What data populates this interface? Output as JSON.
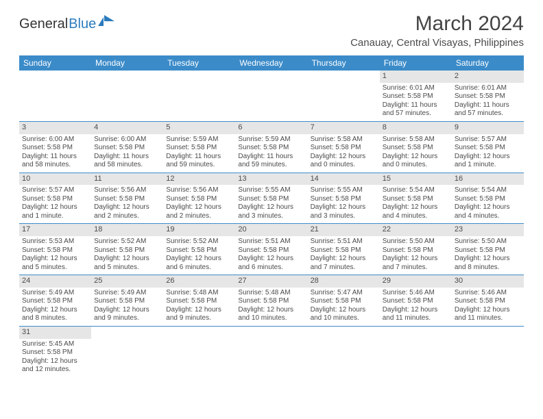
{
  "brand": {
    "main": "General",
    "accent": "Blue"
  },
  "title": "March 2024",
  "location": "Canauay, Central Visayas, Philippines",
  "colors": {
    "header_bg": "#3b8bc9",
    "header_text": "#ffffff",
    "date_bg": "#e6e6e6",
    "text": "#4a4a4a",
    "row_border": "#3b8bc9",
    "accent": "#2b7bbd"
  },
  "day_names": [
    "Sunday",
    "Monday",
    "Tuesday",
    "Wednesday",
    "Thursday",
    "Friday",
    "Saturday"
  ],
  "weeks": [
    [
      null,
      null,
      null,
      null,
      null,
      {
        "d": "1",
        "sr": "Sunrise: 6:01 AM",
        "ss": "Sunset: 5:58 PM",
        "dl1": "Daylight: 11 hours",
        "dl2": "and 57 minutes."
      },
      {
        "d": "2",
        "sr": "Sunrise: 6:01 AM",
        "ss": "Sunset: 5:58 PM",
        "dl1": "Daylight: 11 hours",
        "dl2": "and 57 minutes."
      }
    ],
    [
      {
        "d": "3",
        "sr": "Sunrise: 6:00 AM",
        "ss": "Sunset: 5:58 PM",
        "dl1": "Daylight: 11 hours",
        "dl2": "and 58 minutes."
      },
      {
        "d": "4",
        "sr": "Sunrise: 6:00 AM",
        "ss": "Sunset: 5:58 PM",
        "dl1": "Daylight: 11 hours",
        "dl2": "and 58 minutes."
      },
      {
        "d": "5",
        "sr": "Sunrise: 5:59 AM",
        "ss": "Sunset: 5:58 PM",
        "dl1": "Daylight: 11 hours",
        "dl2": "and 59 minutes."
      },
      {
        "d": "6",
        "sr": "Sunrise: 5:59 AM",
        "ss": "Sunset: 5:58 PM",
        "dl1": "Daylight: 11 hours",
        "dl2": "and 59 minutes."
      },
      {
        "d": "7",
        "sr": "Sunrise: 5:58 AM",
        "ss": "Sunset: 5:58 PM",
        "dl1": "Daylight: 12 hours",
        "dl2": "and 0 minutes."
      },
      {
        "d": "8",
        "sr": "Sunrise: 5:58 AM",
        "ss": "Sunset: 5:58 PM",
        "dl1": "Daylight: 12 hours",
        "dl2": "and 0 minutes."
      },
      {
        "d": "9",
        "sr": "Sunrise: 5:57 AM",
        "ss": "Sunset: 5:58 PM",
        "dl1": "Daylight: 12 hours",
        "dl2": "and 1 minute."
      }
    ],
    [
      {
        "d": "10",
        "sr": "Sunrise: 5:57 AM",
        "ss": "Sunset: 5:58 PM",
        "dl1": "Daylight: 12 hours",
        "dl2": "and 1 minute."
      },
      {
        "d": "11",
        "sr": "Sunrise: 5:56 AM",
        "ss": "Sunset: 5:58 PM",
        "dl1": "Daylight: 12 hours",
        "dl2": "and 2 minutes."
      },
      {
        "d": "12",
        "sr": "Sunrise: 5:56 AM",
        "ss": "Sunset: 5:58 PM",
        "dl1": "Daylight: 12 hours",
        "dl2": "and 2 minutes."
      },
      {
        "d": "13",
        "sr": "Sunrise: 5:55 AM",
        "ss": "Sunset: 5:58 PM",
        "dl1": "Daylight: 12 hours",
        "dl2": "and 3 minutes."
      },
      {
        "d": "14",
        "sr": "Sunrise: 5:55 AM",
        "ss": "Sunset: 5:58 PM",
        "dl1": "Daylight: 12 hours",
        "dl2": "and 3 minutes."
      },
      {
        "d": "15",
        "sr": "Sunrise: 5:54 AM",
        "ss": "Sunset: 5:58 PM",
        "dl1": "Daylight: 12 hours",
        "dl2": "and 4 minutes."
      },
      {
        "d": "16",
        "sr": "Sunrise: 5:54 AM",
        "ss": "Sunset: 5:58 PM",
        "dl1": "Daylight: 12 hours",
        "dl2": "and 4 minutes."
      }
    ],
    [
      {
        "d": "17",
        "sr": "Sunrise: 5:53 AM",
        "ss": "Sunset: 5:58 PM",
        "dl1": "Daylight: 12 hours",
        "dl2": "and 5 minutes."
      },
      {
        "d": "18",
        "sr": "Sunrise: 5:52 AM",
        "ss": "Sunset: 5:58 PM",
        "dl1": "Daylight: 12 hours",
        "dl2": "and 5 minutes."
      },
      {
        "d": "19",
        "sr": "Sunrise: 5:52 AM",
        "ss": "Sunset: 5:58 PM",
        "dl1": "Daylight: 12 hours",
        "dl2": "and 6 minutes."
      },
      {
        "d": "20",
        "sr": "Sunrise: 5:51 AM",
        "ss": "Sunset: 5:58 PM",
        "dl1": "Daylight: 12 hours",
        "dl2": "and 6 minutes."
      },
      {
        "d": "21",
        "sr": "Sunrise: 5:51 AM",
        "ss": "Sunset: 5:58 PM",
        "dl1": "Daylight: 12 hours",
        "dl2": "and 7 minutes."
      },
      {
        "d": "22",
        "sr": "Sunrise: 5:50 AM",
        "ss": "Sunset: 5:58 PM",
        "dl1": "Daylight: 12 hours",
        "dl2": "and 7 minutes."
      },
      {
        "d": "23",
        "sr": "Sunrise: 5:50 AM",
        "ss": "Sunset: 5:58 PM",
        "dl1": "Daylight: 12 hours",
        "dl2": "and 8 minutes."
      }
    ],
    [
      {
        "d": "24",
        "sr": "Sunrise: 5:49 AM",
        "ss": "Sunset: 5:58 PM",
        "dl1": "Daylight: 12 hours",
        "dl2": "and 8 minutes."
      },
      {
        "d": "25",
        "sr": "Sunrise: 5:49 AM",
        "ss": "Sunset: 5:58 PM",
        "dl1": "Daylight: 12 hours",
        "dl2": "and 9 minutes."
      },
      {
        "d": "26",
        "sr": "Sunrise: 5:48 AM",
        "ss": "Sunset: 5:58 PM",
        "dl1": "Daylight: 12 hours",
        "dl2": "and 9 minutes."
      },
      {
        "d": "27",
        "sr": "Sunrise: 5:48 AM",
        "ss": "Sunset: 5:58 PM",
        "dl1": "Daylight: 12 hours",
        "dl2": "and 10 minutes."
      },
      {
        "d": "28",
        "sr": "Sunrise: 5:47 AM",
        "ss": "Sunset: 5:58 PM",
        "dl1": "Daylight: 12 hours",
        "dl2": "and 10 minutes."
      },
      {
        "d": "29",
        "sr": "Sunrise: 5:46 AM",
        "ss": "Sunset: 5:58 PM",
        "dl1": "Daylight: 12 hours",
        "dl2": "and 11 minutes."
      },
      {
        "d": "30",
        "sr": "Sunrise: 5:46 AM",
        "ss": "Sunset: 5:58 PM",
        "dl1": "Daylight: 12 hours",
        "dl2": "and 11 minutes."
      }
    ],
    [
      {
        "d": "31",
        "sr": "Sunrise: 5:45 AM",
        "ss": "Sunset: 5:58 PM",
        "dl1": "Daylight: 12 hours",
        "dl2": "and 12 minutes."
      },
      null,
      null,
      null,
      null,
      null,
      null
    ]
  ]
}
